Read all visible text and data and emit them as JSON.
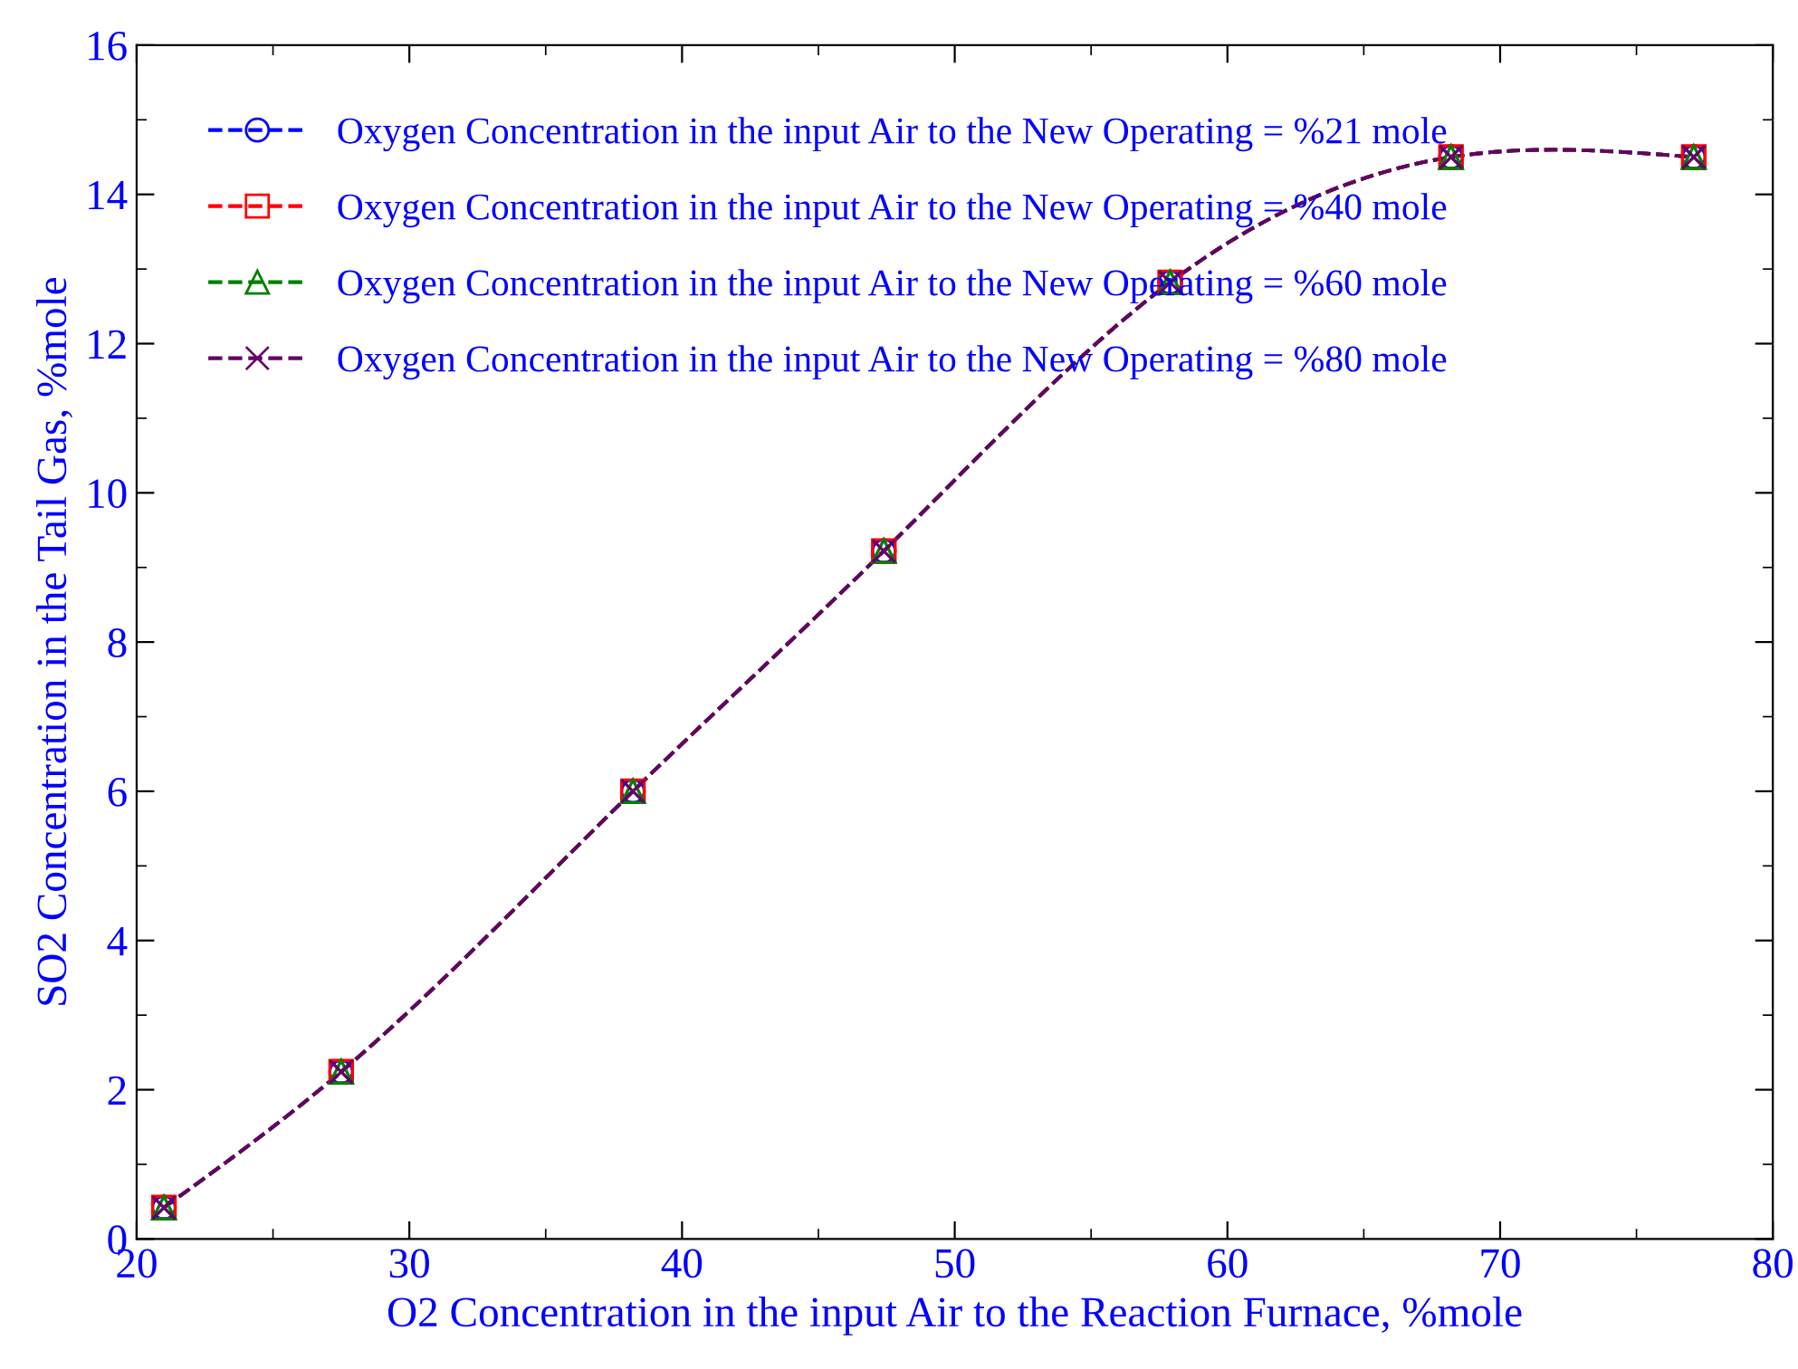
{
  "chart_data": {
    "type": "line",
    "xlabel": "O2 Concentration in the input Air to the Reaction Furnace, %mole",
    "ylabel": "SO2 Concentration in the Tail Gas, %mole",
    "x": [
      21.0,
      27.5,
      38.2,
      47.4,
      57.9,
      68.2,
      77.1
    ],
    "series": [
      {
        "name": "Oxygen Concentration in the input Air to the New Operating = %21 mole",
        "color": "#0000ff",
        "marker": "circle",
        "values": [
          0.42,
          2.24,
          6.0,
          9.22,
          12.82,
          14.5,
          14.5
        ]
      },
      {
        "name": "Oxygen Concentration in the input Air to the New Operating = %40 mole",
        "color": "#ff0000",
        "marker": "square",
        "values": [
          0.42,
          2.24,
          6.0,
          9.22,
          12.82,
          14.5,
          14.5
        ]
      },
      {
        "name": "Oxygen Concentration in the input Air to the New Operating = %60 mole",
        "color": "#008000",
        "marker": "triangle",
        "values": [
          0.42,
          2.24,
          6.0,
          9.22,
          12.82,
          14.5,
          14.5
        ]
      },
      {
        "name": "Oxygen Concentration in the input Air to the New Operating = %80 mole",
        "color": "#660066",
        "marker": "cross",
        "values": [
          0.42,
          2.24,
          6.0,
          9.22,
          12.82,
          14.5,
          14.5
        ]
      }
    ],
    "xlim": [
      20,
      80
    ],
    "xticks": [
      20,
      30,
      40,
      50,
      60,
      70,
      80
    ],
    "ylim": [
      0,
      16
    ],
    "yticks": [
      0,
      2,
      4,
      6,
      8,
      10,
      12,
      14,
      16
    ],
    "line_style": "dashed",
    "grid": false,
    "legend": "top left"
  }
}
